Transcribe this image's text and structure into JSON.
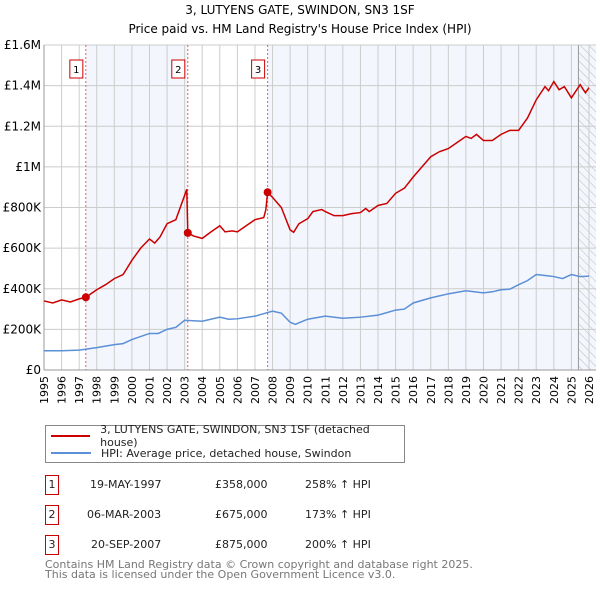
{
  "chart_data": {
    "type": "line",
    "title": "3, LUTYENS GATE, SWINDON, SN3 1SF",
    "subtitle": "Price paid vs. HM Land Registry's House Price Index (HPI)",
    "xlim": [
      1995,
      2026.4
    ],
    "ylim": [
      0,
      1600000
    ],
    "yticks": [
      {
        "v": 0,
        "label": "£0"
      },
      {
        "v": 200000,
        "label": "£200K"
      },
      {
        "v": 400000,
        "label": "£400K"
      },
      {
        "v": 600000,
        "label": "£600K"
      },
      {
        "v": 800000,
        "label": "£800K"
      },
      {
        "v": 1000000,
        "label": "£1M"
      },
      {
        "v": 1200000,
        "label": "£1.2M"
      },
      {
        "v": 1400000,
        "label": "£1.4M"
      },
      {
        "v": 1600000,
        "label": "£1.6M"
      }
    ],
    "xticks": [
      "1995",
      "1996",
      "1997",
      "1998",
      "1999",
      "2000",
      "2001",
      "2002",
      "2003",
      "2004",
      "2005",
      "2006",
      "2007",
      "2008",
      "2009",
      "2010",
      "2011",
      "2012",
      "2013",
      "2014",
      "2015",
      "2016",
      "2017",
      "2018",
      "2019",
      "2020",
      "2021",
      "2022",
      "2023",
      "2024",
      "2025",
      "2026"
    ],
    "grid": true,
    "forecast_from": 2025.4,
    "series": [
      {
        "name": "3, LUTYENS GATE, SWINDON, SN3 1SF (detached house)",
        "color": "#cc0000",
        "points": [
          [
            1995,
            340
          ],
          [
            1995.5,
            330
          ],
          [
            1996,
            345
          ],
          [
            1996.5,
            335
          ],
          [
            1997,
            350
          ],
          [
            1997.38,
            358
          ],
          [
            1998,
            395
          ],
          [
            1998.5,
            420
          ],
          [
            1999,
            450
          ],
          [
            1999.5,
            470
          ],
          [
            2000,
            540
          ],
          [
            2000.5,
            600
          ],
          [
            2001,
            645
          ],
          [
            2001.3,
            625
          ],
          [
            2001.6,
            655
          ],
          [
            2002,
            720
          ],
          [
            2002.5,
            740
          ],
          [
            2003,
            860
          ],
          [
            2003.12,
            890
          ],
          [
            2003.18,
            675
          ],
          [
            2003.5,
            660
          ],
          [
            2004,
            648
          ],
          [
            2004.5,
            680
          ],
          [
            2005,
            710
          ],
          [
            2005.3,
            680
          ],
          [
            2005.7,
            685
          ],
          [
            2006,
            680
          ],
          [
            2006.5,
            710
          ],
          [
            2007,
            740
          ],
          [
            2007.5,
            750
          ],
          [
            2007.62,
            790
          ],
          [
            2007.72,
            875
          ],
          [
            2008,
            850
          ],
          [
            2008.5,
            800
          ],
          [
            2009,
            690
          ],
          [
            2009.2,
            678
          ],
          [
            2009.5,
            720
          ],
          [
            2010,
            745
          ],
          [
            2010.3,
            780
          ],
          [
            2010.8,
            790
          ],
          [
            2011,
            780
          ],
          [
            2011.5,
            760
          ],
          [
            2012,
            760
          ],
          [
            2012.5,
            770
          ],
          [
            2013,
            775
          ],
          [
            2013.3,
            795
          ],
          [
            2013.5,
            780
          ],
          [
            2014,
            810
          ],
          [
            2014.5,
            820
          ],
          [
            2015,
            870
          ],
          [
            2015.5,
            895
          ],
          [
            2016,
            950
          ],
          [
            2016.5,
            1000
          ],
          [
            2017,
            1050
          ],
          [
            2017.5,
            1075
          ],
          [
            2018,
            1090
          ],
          [
            2018.5,
            1120
          ],
          [
            2019,
            1150
          ],
          [
            2019.3,
            1140
          ],
          [
            2019.6,
            1160
          ],
          [
            2020,
            1130
          ],
          [
            2020.5,
            1130
          ],
          [
            2021,
            1160
          ],
          [
            2021.5,
            1180
          ],
          [
            2022,
            1180
          ],
          [
            2022.5,
            1240
          ],
          [
            2023,
            1330
          ],
          [
            2023.5,
            1395
          ],
          [
            2023.7,
            1375
          ],
          [
            2024,
            1420
          ],
          [
            2024.3,
            1380
          ],
          [
            2024.6,
            1395
          ],
          [
            2025,
            1340
          ],
          [
            2025.5,
            1405
          ],
          [
            2025.8,
            1365
          ],
          [
            2026,
            1390
          ]
        ]
      },
      {
        "name": "HPI: Average price, detached house, Swindon",
        "color": "#5b8fd6",
        "points": [
          [
            1995,
            95
          ],
          [
            1996,
            95
          ],
          [
            1997,
            98
          ],
          [
            1998,
            110
          ],
          [
            1999,
            125
          ],
          [
            1999.5,
            130
          ],
          [
            2000,
            150
          ],
          [
            2001,
            180
          ],
          [
            2001.5,
            180
          ],
          [
            2002,
            200
          ],
          [
            2002.5,
            210
          ],
          [
            2003,
            245
          ],
          [
            2004,
            240
          ],
          [
            2005,
            260
          ],
          [
            2005.5,
            250
          ],
          [
            2006,
            252
          ],
          [
            2007,
            265
          ],
          [
            2008,
            290
          ],
          [
            2008.5,
            280
          ],
          [
            2009,
            235
          ],
          [
            2009.3,
            225
          ],
          [
            2010,
            250
          ],
          [
            2011,
            265
          ],
          [
            2012,
            255
          ],
          [
            2013,
            260
          ],
          [
            2014,
            270
          ],
          [
            2015,
            295
          ],
          [
            2015.5,
            300
          ],
          [
            2016,
            330
          ],
          [
            2017,
            355
          ],
          [
            2018,
            375
          ],
          [
            2019,
            390
          ],
          [
            2020,
            380
          ],
          [
            2020.5,
            385
          ],
          [
            2021,
            395
          ],
          [
            2021.5,
            398
          ],
          [
            2022,
            420
          ],
          [
            2022.5,
            440
          ],
          [
            2023,
            470
          ],
          [
            2023.5,
            465
          ],
          [
            2024,
            460
          ],
          [
            2024.5,
            450
          ],
          [
            2025,
            470
          ],
          [
            2025.5,
            460
          ],
          [
            2026,
            462
          ]
        ]
      }
    ],
    "sales": [
      {
        "n": "1",
        "x": 1997.38,
        "v": 358
      },
      {
        "n": "2",
        "x": 2003.18,
        "v": 675
      },
      {
        "n": "3",
        "x": 2007.72,
        "v": 875
      }
    ]
  },
  "legend": [
    "3, LUTYENS GATE, SWINDON, SN3 1SF (detached house)",
    "HPI: Average price, detached house, Swindon"
  ],
  "transactions": [
    {
      "n": "1",
      "date": "19-MAY-1997",
      "price": "£358,000",
      "hpi": "258% ↑ HPI"
    },
    {
      "n": "2",
      "date": "06-MAR-2003",
      "price": "£675,000",
      "hpi": "173% ↑ HPI"
    },
    {
      "n": "3",
      "date": "20-SEP-2007",
      "price": "£875,000",
      "hpi": "200% ↑ HPI"
    }
  ],
  "footer": [
    "Contains HM Land Registry data © Crown copyright and database right 2025.",
    "This data is licensed under the Open Government Licence v3.0."
  ]
}
